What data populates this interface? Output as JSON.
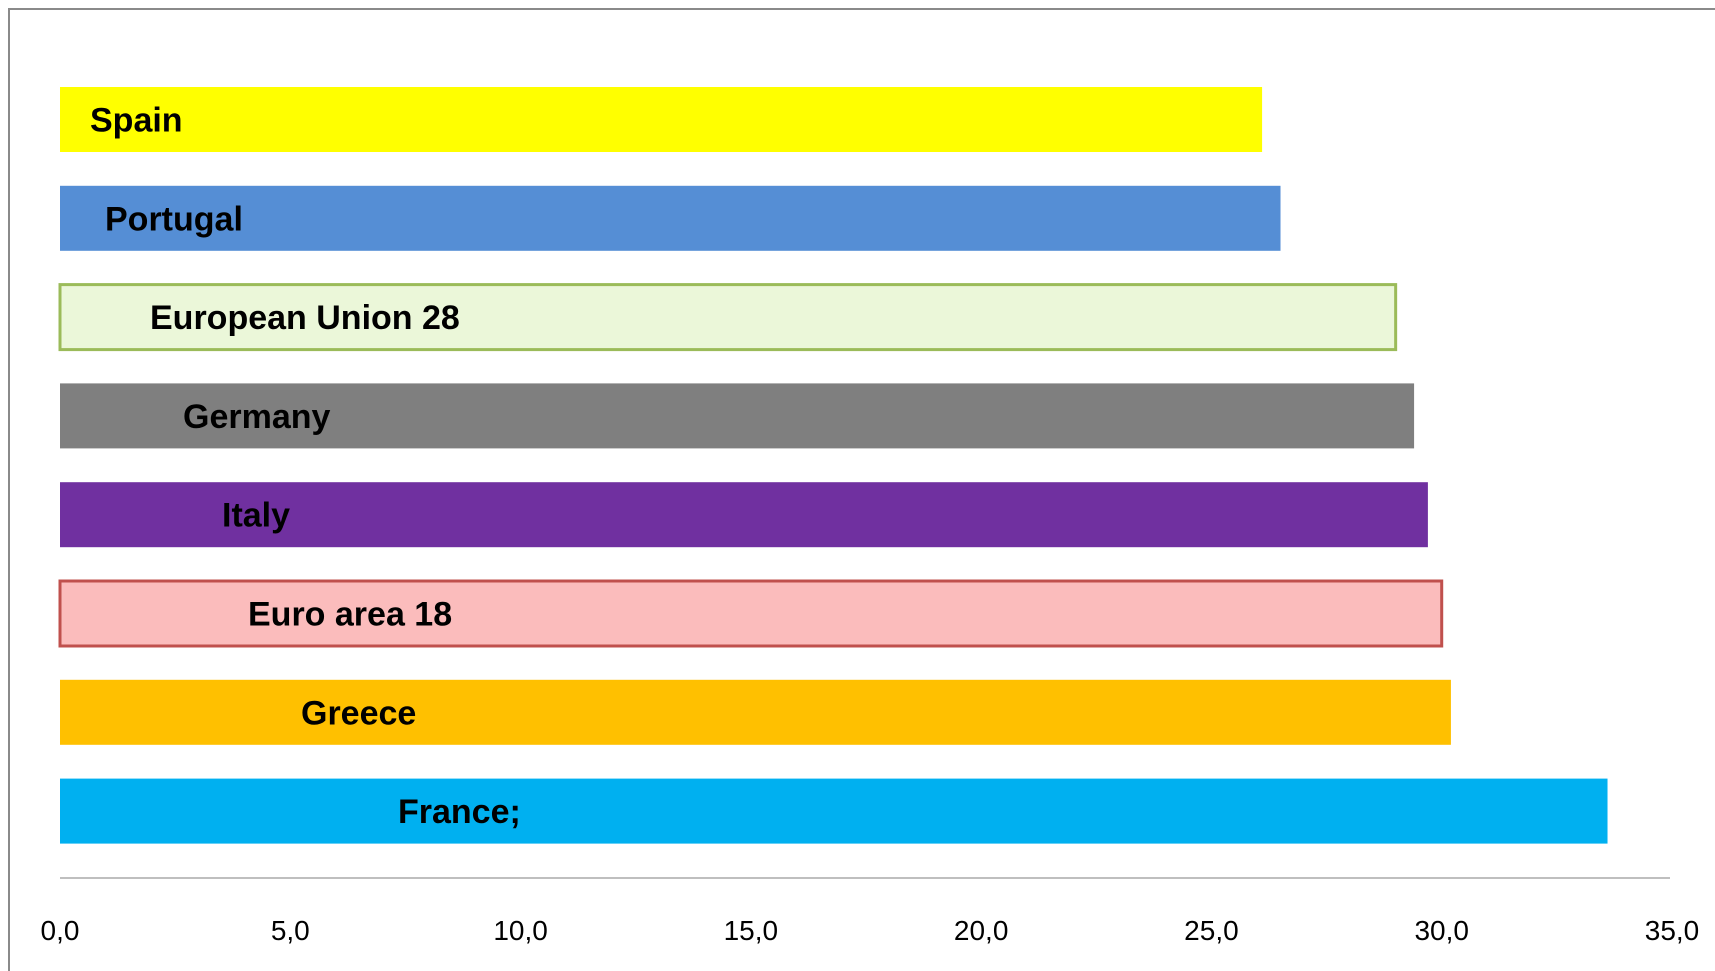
{
  "chart_data": {
    "type": "bar",
    "orientation": "horizontal",
    "title": "",
    "xlabel": "",
    "ylabel": "",
    "xlim": [
      0,
      35
    ],
    "tick_step": 5,
    "tick_labels": [
      "0,0",
      "5,0",
      "10,0",
      "15,0",
      "20,0",
      "25,0",
      "30,0",
      "35,0"
    ],
    "grid": false,
    "categories": [
      "Spain",
      "Portugal",
      "European Union 28",
      "Germany",
      "Italy",
      "Euro area 18",
      "Greece",
      "France;"
    ],
    "values": [
      26.1,
      26.5,
      29.0,
      29.4,
      29.7,
      30.0,
      30.2,
      33.6
    ],
    "colors": [
      "#ffff00",
      "#558ed5",
      "#ebf7d9",
      "#7f7f7f",
      "#7030a0",
      "#fbbcbc",
      "#ffc000",
      "#00b0f0"
    ],
    "outlines": [
      "",
      "",
      "#9bbb59",
      "",
      "",
      "#c0504d",
      "",
      ""
    ]
  }
}
